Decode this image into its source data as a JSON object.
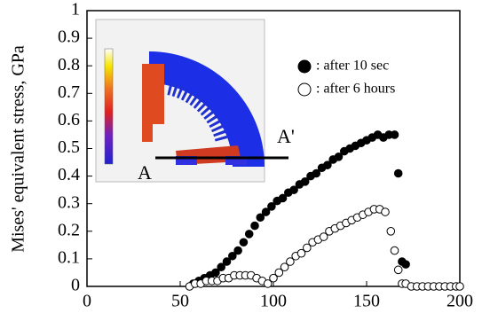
{
  "chart_data": {
    "type": "scatter",
    "ylabel": "Mises' equivalent stress, GPa",
    "xlim": [
      0,
      200
    ],
    "xticks": [
      0,
      50,
      100,
      150,
      200
    ],
    "ylim": [
      0,
      1
    ],
    "yticks": [
      0,
      0.1,
      0.2,
      0.3,
      0.4,
      0.5,
      0.6,
      0.7,
      0.8,
      0.9,
      1
    ],
    "annotations": [
      "A",
      "A'"
    ],
    "series": [
      {
        "name": ": after 10 sec",
        "color": "#000000",
        "marker": "filled",
        "x": [
          57,
          60,
          63,
          66,
          69,
          72,
          75,
          78,
          81,
          84,
          87,
          90,
          93,
          96,
          99,
          102,
          105,
          108,
          111,
          114,
          117,
          120,
          123,
          126,
          129,
          132,
          135,
          138,
          141,
          144,
          147,
          150,
          153,
          156,
          159,
          162,
          165,
          167,
          169,
          171
        ],
        "values": [
          0.01,
          0.02,
          0.03,
          0.04,
          0.05,
          0.07,
          0.09,
          0.11,
          0.13,
          0.16,
          0.19,
          0.22,
          0.25,
          0.27,
          0.29,
          0.31,
          0.32,
          0.34,
          0.35,
          0.37,
          0.38,
          0.4,
          0.41,
          0.43,
          0.44,
          0.46,
          0.47,
          0.49,
          0.5,
          0.51,
          0.52,
          0.53,
          0.54,
          0.55,
          0.54,
          0.55,
          0.55,
          0.41,
          0.09,
          0.08
        ]
      },
      {
        "name": ": after 6 hours",
        "color": "#000000",
        "marker": "open",
        "x": [
          55,
          58,
          61,
          64,
          67,
          70,
          73,
          76,
          79,
          82,
          85,
          88,
          91,
          94,
          97,
          100,
          103,
          106,
          109,
          112,
          115,
          118,
          121,
          124,
          127,
          130,
          133,
          136,
          139,
          142,
          145,
          148,
          151,
          154,
          157,
          160,
          163,
          165,
          167,
          169,
          171,
          174,
          177,
          180,
          183,
          186,
          189,
          192,
          195,
          198,
          200
        ],
        "values": [
          0,
          0.01,
          0.01,
          0.02,
          0.02,
          0.02,
          0.03,
          0.03,
          0.04,
          0.04,
          0.04,
          0.04,
          0.03,
          0.02,
          0.01,
          0.03,
          0.05,
          0.07,
          0.09,
          0.11,
          0.12,
          0.14,
          0.16,
          0.17,
          0.18,
          0.2,
          0.21,
          0.22,
          0.23,
          0.24,
          0.25,
          0.26,
          0.27,
          0.28,
          0.28,
          0.27,
          0.2,
          0.13,
          0.06,
          0.01,
          0.01,
          0,
          0,
          0,
          0,
          0,
          0,
          0,
          0,
          0,
          0
        ]
      }
    ]
  }
}
